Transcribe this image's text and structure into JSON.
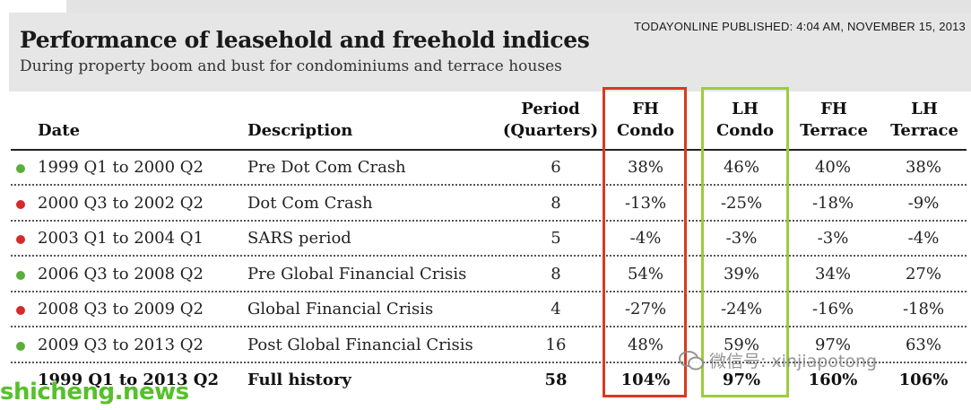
{
  "published": "TODAYONLINE PUBLISHED: 4:04 AM, NOVEMBER 15, 2013",
  "title": "Performance of leasehold and freehold indices",
  "subtitle": "During property boom and bust for condominiums and terrace houses",
  "columns": {
    "date": "Date",
    "description": "Description",
    "period_l1": "Period",
    "period_l2": "(Quarters)",
    "fh_condo_l1": "FH",
    "fh_condo_l2": "Condo",
    "lh_condo_l1": "LH",
    "lh_condo_l2": "Condo",
    "fh_terrace_l1": "FH",
    "fh_terrace_l2": "Terrace",
    "lh_terrace_l1": "LH",
    "lh_terrace_l2": "Terrace"
  },
  "colors": {
    "up": "#5aae3a",
    "down": "#d42b2b",
    "fh_highlight": "#d9391f",
    "lh_highlight": "#9ccc3c"
  },
  "rows": [
    {
      "trend": "up",
      "date": "1999 Q1 to 2000 Q2",
      "description": "Pre Dot Com Crash",
      "period": "6",
      "fh_condo": "38%",
      "lh_condo": "46%",
      "fh_terrace": "40%",
      "lh_terrace": "38%"
    },
    {
      "trend": "down",
      "date": "2000 Q3 to 2002 Q2",
      "description": "Dot Com Crash",
      "period": "8",
      "fh_condo": "-13%",
      "lh_condo": "-25%",
      "fh_terrace": "-18%",
      "lh_terrace": "-9%"
    },
    {
      "trend": "down",
      "date": "2003 Q1 to 2004 Q1",
      "description": "SARS period",
      "period": "5",
      "fh_condo": "-4%",
      "lh_condo": "-3%",
      "fh_terrace": "-3%",
      "lh_terrace": "-4%"
    },
    {
      "trend": "up",
      "date": "2006 Q3 to 2008 Q2",
      "description": "Pre Global Financial Crisis",
      "period": "8",
      "fh_condo": "54%",
      "lh_condo": "39%",
      "fh_terrace": "34%",
      "lh_terrace": "27%"
    },
    {
      "trend": "down",
      "date": "2008 Q3 to 2009 Q2",
      "description": "Global Financial Crisis",
      "period": "4",
      "fh_condo": "-27%",
      "lh_condo": "-24%",
      "fh_terrace": "-16%",
      "lh_terrace": "-18%"
    },
    {
      "trend": "up",
      "date": "2009 Q3 to 2013 Q2",
      "description": "Post Global Financial Crisis",
      "period": "16",
      "fh_condo": "48%",
      "lh_condo": "59%",
      "fh_terrace": "97%",
      "lh_terrace": "63%"
    }
  ],
  "total": {
    "date": "1999 Q1 to 2013 Q2",
    "description": "Full history",
    "period": "58",
    "fh_condo": "104%",
    "lh_condo": "97%",
    "fh_terrace": "160%",
    "lh_terrace": "106%"
  },
  "watermarks": {
    "wechat": "微信号: xinjiapotong",
    "site": "shicheng.news"
  }
}
